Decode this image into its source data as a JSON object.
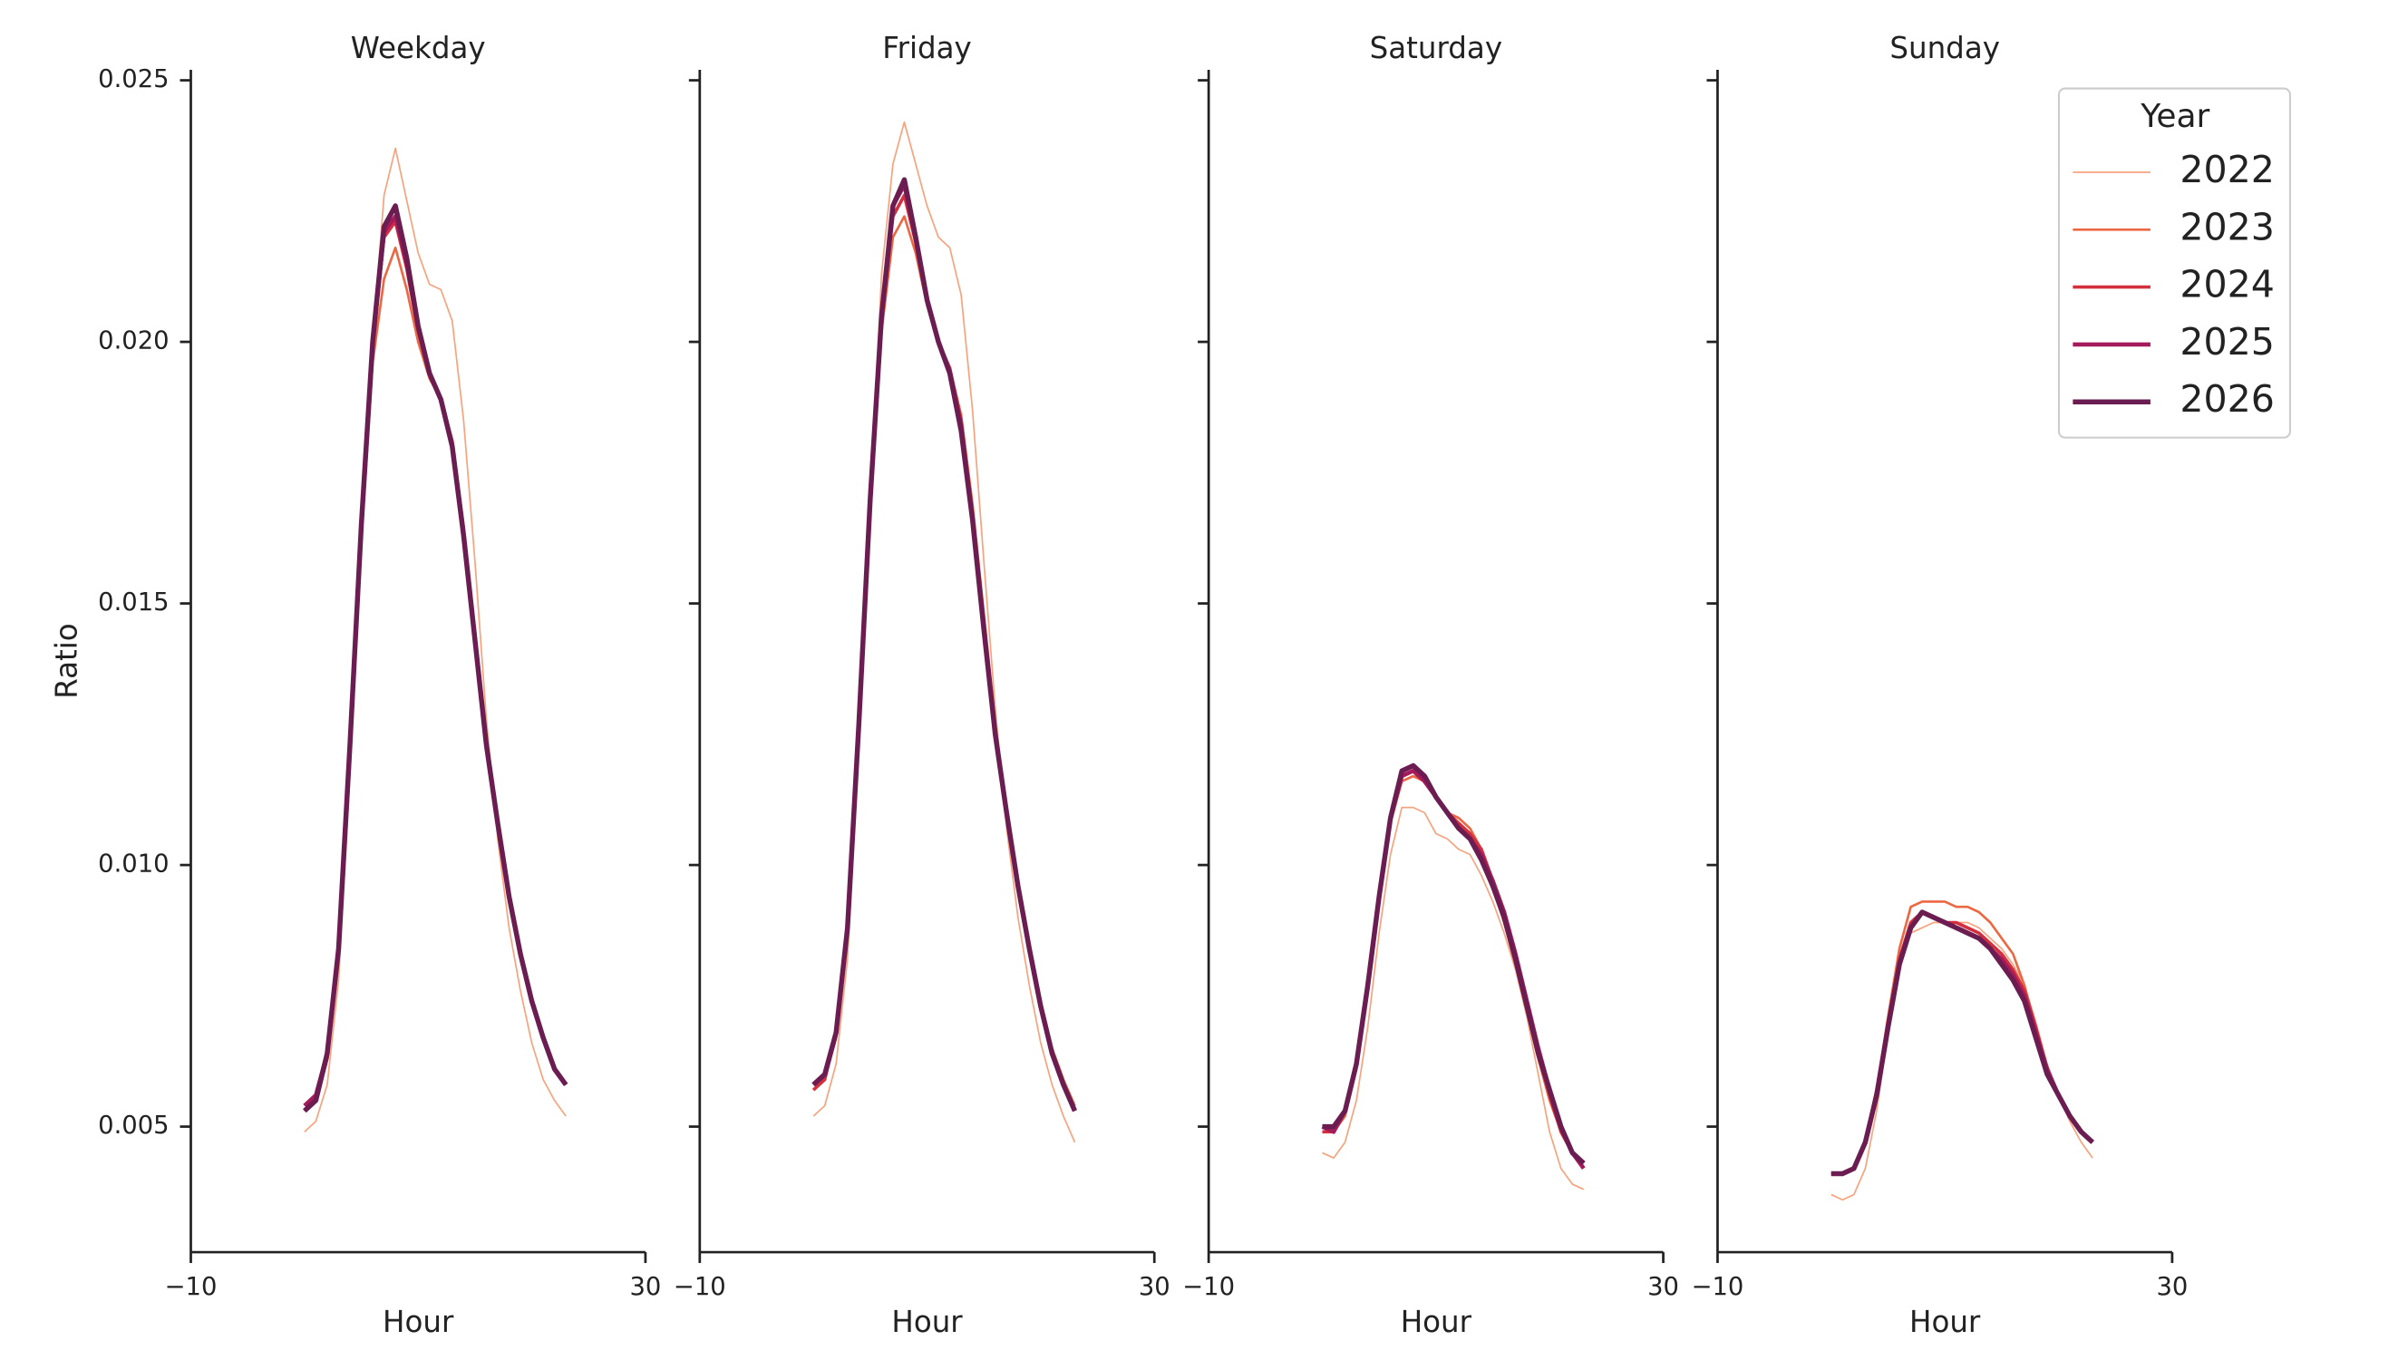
{
  "chart_data": [
    {
      "type": "line",
      "title": "Weekday",
      "xlabel": "Hour",
      "ylabel": "Ratio",
      "x": [
        0,
        1,
        2,
        3,
        4,
        5,
        6,
        7,
        8,
        9,
        10,
        11,
        12,
        13,
        14,
        15,
        16,
        17,
        18,
        19,
        20,
        21,
        22,
        23
      ],
      "xlim": [
        -10,
        30
      ],
      "xticks": [
        {
          "value": -10,
          "label": "−10"
        },
        30
      ],
      "ylim": [
        0.0026,
        0.0252
      ],
      "yticks": [
        0.005,
        {
          "value": 0.01,
          "label": "0.010"
        },
        0.015,
        {
          "value": 0.02,
          "label": "0.020"
        },
        0.025
      ],
      "series": [
        {
          "name": "2022",
          "color": "#f6a47f",
          "values": [
            0.0049,
            0.0051,
            0.0058,
            0.0078,
            0.0117,
            0.016,
            0.02,
            0.0228,
            0.0237,
            0.0227,
            0.0217,
            0.0211,
            0.021,
            0.0204,
            0.0185,
            0.0158,
            0.0128,
            0.0105,
            0.0088,
            0.0076,
            0.0066,
            0.0059,
            0.0055,
            0.0052
          ]
        },
        {
          "name": "2023",
          "color": "#eb6843",
          "values": [
            0.0053,
            0.0055,
            0.0063,
            0.0082,
            0.012,
            0.0162,
            0.0196,
            0.0212,
            0.0218,
            0.021,
            0.02,
            0.0193,
            0.0189,
            0.0181,
            0.0165,
            0.0145,
            0.0124,
            0.0108,
            0.0094,
            0.0083,
            0.0074,
            0.0067,
            0.0061,
            0.0058
          ]
        },
        {
          "name": "2024",
          "color": "#d32f3e",
          "values": [
            0.0053,
            0.0055,
            0.0063,
            0.0083,
            0.0122,
            0.0164,
            0.0199,
            0.022,
            0.0223,
            0.0214,
            0.0202,
            0.0194,
            0.0189,
            0.0181,
            0.0164,
            0.0144,
            0.0124,
            0.0108,
            0.0094,
            0.0083,
            0.0074,
            0.0067,
            0.0061,
            0.0058
          ]
        },
        {
          "name": "2025",
          "color": "#a41a5a",
          "values": [
            0.0054,
            0.0056,
            0.0064,
            0.0084,
            0.0123,
            0.0165,
            0.02,
            0.0221,
            0.0224,
            0.0215,
            0.0203,
            0.0194,
            0.0189,
            0.018,
            0.0163,
            0.0143,
            0.0123,
            0.0108,
            0.0094,
            0.0083,
            0.0074,
            0.0067,
            0.0061,
            0.0058
          ]
        },
        {
          "name": "2026",
          "color": "#6b1d52",
          "values": [
            0.0053,
            0.0055,
            0.0064,
            0.0084,
            0.0123,
            0.0165,
            0.02,
            0.0222,
            0.0226,
            0.0216,
            0.0203,
            0.0194,
            0.0189,
            0.018,
            0.0163,
            0.0143,
            0.0123,
            0.0108,
            0.0094,
            0.0083,
            0.0074,
            0.0067,
            0.0061,
            0.0058
          ]
        }
      ]
    },
    {
      "type": "line",
      "title": "Friday",
      "xlabel": "Hour",
      "x": [
        0,
        1,
        2,
        3,
        4,
        5,
        6,
        7,
        8,
        9,
        10,
        11,
        12,
        13,
        14,
        15,
        16,
        17,
        18,
        19,
        20,
        21,
        22,
        23
      ],
      "xlim": [
        -10,
        30
      ],
      "xticks": [
        {
          "value": -10,
          "label": "−10"
        },
        30
      ],
      "series": [
        {
          "name": "2022",
          "color": "#f6a47f",
          "values": [
            0.0052,
            0.0054,
            0.0062,
            0.0082,
            0.0123,
            0.0168,
            0.0213,
            0.0234,
            0.0242,
            0.0234,
            0.0226,
            0.022,
            0.0218,
            0.0209,
            0.0187,
            0.0158,
            0.013,
            0.0107,
            0.009,
            0.0077,
            0.0066,
            0.0058,
            0.0052,
            0.0047
          ]
        },
        {
          "name": "2023",
          "color": "#eb6843",
          "values": [
            0.0057,
            0.0059,
            0.0067,
            0.0087,
            0.0126,
            0.0168,
            0.0202,
            0.022,
            0.0224,
            0.0217,
            0.0207,
            0.02,
            0.0195,
            0.0186,
            0.0169,
            0.0148,
            0.0127,
            0.0111,
            0.0097,
            0.0085,
            0.0074,
            0.0065,
            0.0059,
            0.0054
          ]
        },
        {
          "name": "2024",
          "color": "#d32f3e",
          "values": [
            0.0057,
            0.0059,
            0.0068,
            0.0088,
            0.0127,
            0.0169,
            0.0204,
            0.0224,
            0.0228,
            0.0219,
            0.0208,
            0.02,
            0.0195,
            0.0185,
            0.0167,
            0.0146,
            0.0126,
            0.011,
            0.0096,
            0.0084,
            0.0073,
            0.0064,
            0.0058,
            0.0053
          ]
        },
        {
          "name": "2025",
          "color": "#a41a5a",
          "values": [
            0.0058,
            0.006,
            0.0068,
            0.0088,
            0.0127,
            0.017,
            0.0205,
            0.0226,
            0.023,
            0.022,
            0.0208,
            0.02,
            0.0194,
            0.0184,
            0.0166,
            0.0145,
            0.0125,
            0.011,
            0.0096,
            0.0084,
            0.0073,
            0.0064,
            0.0058,
            0.0053
          ]
        },
        {
          "name": "2026",
          "color": "#6b1d52",
          "values": [
            0.0058,
            0.006,
            0.0068,
            0.0088,
            0.0127,
            0.017,
            0.0205,
            0.0226,
            0.0231,
            0.022,
            0.0208,
            0.02,
            0.0194,
            0.0183,
            0.0166,
            0.0145,
            0.0125,
            0.011,
            0.0096,
            0.0084,
            0.0073,
            0.0064,
            0.0058,
            0.0053
          ]
        }
      ]
    },
    {
      "type": "line",
      "title": "Saturday",
      "xlabel": "Hour",
      "x": [
        0,
        1,
        2,
        3,
        4,
        5,
        6,
        7,
        8,
        9,
        10,
        11,
        12,
        13,
        14,
        15,
        16,
        17,
        18,
        19,
        20,
        21,
        22,
        23
      ],
      "xlim": [
        -10,
        30
      ],
      "xticks": [
        {
          "value": -10,
          "label": "−10"
        },
        30
      ],
      "series": [
        {
          "name": "2022",
          "color": "#f6a47f",
          "values": [
            0.0045,
            0.0044,
            0.0047,
            0.0055,
            0.0069,
            0.0087,
            0.0102,
            0.0111,
            0.0111,
            0.011,
            0.0106,
            0.0105,
            0.0103,
            0.0102,
            0.0098,
            0.0093,
            0.0087,
            0.008,
            0.0071,
            0.006,
            0.0049,
            0.0042,
            0.0039,
            0.0038
          ]
        },
        {
          "name": "2023",
          "color": "#eb6843",
          "values": [
            0.0049,
            0.0049,
            0.0052,
            0.0061,
            0.0076,
            0.0093,
            0.0108,
            0.0116,
            0.0117,
            0.0116,
            0.0113,
            0.011,
            0.0109,
            0.0107,
            0.0103,
            0.0096,
            0.0089,
            0.0081,
            0.0072,
            0.0063,
            0.0055,
            0.0049,
            0.0045,
            0.0043
          ]
        },
        {
          "name": "2024",
          "color": "#d32f3e",
          "values": [
            0.0049,
            0.0049,
            0.0053,
            0.0062,
            0.0077,
            0.0094,
            0.0109,
            0.0117,
            0.0118,
            0.0116,
            0.0113,
            0.011,
            0.0108,
            0.0106,
            0.0103,
            0.0097,
            0.009,
            0.0082,
            0.0073,
            0.0064,
            0.0056,
            0.0049,
            0.0045,
            0.0043
          ]
        },
        {
          "name": "2025",
          "color": "#a41a5a",
          "values": [
            0.005,
            0.0049,
            0.0053,
            0.0062,
            0.0077,
            0.0094,
            0.0109,
            0.0117,
            0.0118,
            0.0116,
            0.0113,
            0.011,
            0.0107,
            0.0105,
            0.0102,
            0.0097,
            0.0091,
            0.0083,
            0.0074,
            0.0065,
            0.0057,
            0.005,
            0.0045,
            0.0042
          ]
        },
        {
          "name": "2026",
          "color": "#6b1d52",
          "values": [
            0.005,
            0.005,
            0.0053,
            0.0062,
            0.0077,
            0.0094,
            0.0109,
            0.0118,
            0.0119,
            0.0117,
            0.0113,
            0.011,
            0.0107,
            0.0105,
            0.0101,
            0.0096,
            0.009,
            0.0082,
            0.0073,
            0.0064,
            0.0057,
            0.005,
            0.0045,
            0.0043
          ]
        }
      ]
    },
    {
      "type": "line",
      "title": "Sunday",
      "xlabel": "Hour",
      "legend_title": "Year",
      "legend": "upper right",
      "x": [
        0,
        1,
        2,
        3,
        4,
        5,
        6,
        7,
        8,
        9,
        10,
        11,
        12,
        13,
        14,
        15,
        16,
        17,
        18,
        19,
        20,
        21,
        22,
        23
      ],
      "xlim": [
        -10,
        30
      ],
      "xticks": [
        {
          "value": -10,
          "label": "−10"
        },
        30
      ],
      "series": [
        {
          "name": "2022",
          "color": "#f6a47f",
          "values": [
            0.0037,
            0.0036,
            0.0037,
            0.0042,
            0.0053,
            0.0068,
            0.0081,
            0.0087,
            0.0088,
            0.0089,
            0.0089,
            0.0089,
            0.0089,
            0.0088,
            0.0086,
            0.0084,
            0.0081,
            0.0077,
            0.007,
            0.0062,
            0.0056,
            0.0051,
            0.0047,
            0.0044
          ]
        },
        {
          "name": "2023",
          "color": "#eb6843",
          "values": [
            0.0041,
            0.0041,
            0.0042,
            0.0047,
            0.0057,
            0.0071,
            0.0084,
            0.0092,
            0.0093,
            0.0093,
            0.0093,
            0.0092,
            0.0092,
            0.0091,
            0.0089,
            0.0086,
            0.0083,
            0.0077,
            0.0069,
            0.0061,
            0.0056,
            0.0052,
            0.0049,
            0.0047
          ]
        },
        {
          "name": "2024",
          "color": "#d32f3e",
          "values": [
            0.0041,
            0.0041,
            0.0042,
            0.0047,
            0.0057,
            0.007,
            0.0082,
            0.0089,
            0.0091,
            0.009,
            0.0089,
            0.0089,
            0.0088,
            0.0087,
            0.0085,
            0.0083,
            0.008,
            0.0076,
            0.0069,
            0.0061,
            0.0056,
            0.0052,
            0.0049,
            0.0047
          ]
        },
        {
          "name": "2025",
          "color": "#a41a5a",
          "values": [
            0.0041,
            0.0041,
            0.0042,
            0.0047,
            0.0056,
            0.0069,
            0.0081,
            0.0088,
            0.0091,
            0.009,
            0.0089,
            0.0088,
            0.0087,
            0.0086,
            0.0084,
            0.0082,
            0.0079,
            0.0075,
            0.0068,
            0.0061,
            0.0056,
            0.0052,
            0.0049,
            0.0047
          ]
        },
        {
          "name": "2026",
          "color": "#6b1d52",
          "values": [
            0.0041,
            0.0041,
            0.0042,
            0.0047,
            0.0056,
            0.0069,
            0.0081,
            0.0088,
            0.0091,
            0.009,
            0.0089,
            0.0088,
            0.0087,
            0.0086,
            0.0084,
            0.0081,
            0.0078,
            0.0074,
            0.0067,
            0.006,
            0.0056,
            0.0052,
            0.0049,
            0.0047
          ]
        }
      ]
    }
  ]
}
